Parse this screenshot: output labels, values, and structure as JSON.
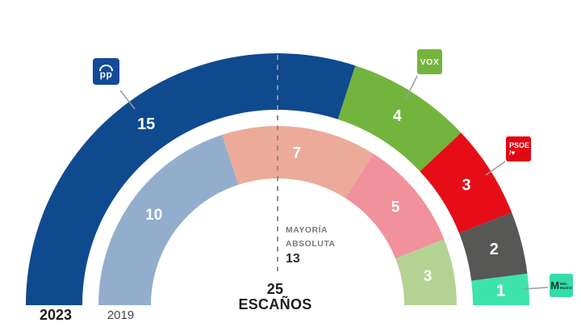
{
  "chart_data": {
    "type": "half-donut",
    "unit_label": {
      "line1": "25",
      "line2": "ESCAÑOS"
    },
    "majority_annotation": {
      "line1": "MAYORÍA",
      "line2": "ABSOLUTA",
      "value": "13"
    },
    "value_label_color": "#ffffff",
    "rings": [
      {
        "name": "2023",
        "total": 25,
        "segments": [
          {
            "value": 15,
            "color": "#0f4a8f",
            "logo": "pp"
          },
          {
            "value": 4,
            "color": "#72b43d",
            "logo": "vox"
          },
          {
            "value": 3,
            "color": "#e60d17",
            "logo": "psoe"
          },
          {
            "value": 2,
            "color": "#575756",
            "logo": null
          },
          {
            "value": 1,
            "color": "#3ee3ab",
            "logo": "mas_madrid"
          }
        ]
      },
      {
        "name": "2019",
        "total": 25,
        "segments": [
          {
            "value": 10,
            "color": "#93aecd",
            "logo": null
          },
          {
            "value": 7,
            "color": "#ecaa99",
            "logo": null
          },
          {
            "value": 5,
            "color": "#f0919b",
            "logo": null
          },
          {
            "value": 3,
            "color": "#b5d295",
            "logo": null
          }
        ]
      }
    ]
  },
  "logos": {
    "pp": {
      "text": "pp",
      "bg": "#134a9a"
    },
    "vox": {
      "text": "VOX",
      "bg": "#73b43d"
    },
    "psoe": {
      "line1": "PSOE",
      "line2": "/♥",
      "bg": "#e30613"
    },
    "mas_madrid": {
      "initial": "M",
      "line1": "Más",
      "line2": "Madrid",
      "bg": "#35dba8"
    }
  }
}
